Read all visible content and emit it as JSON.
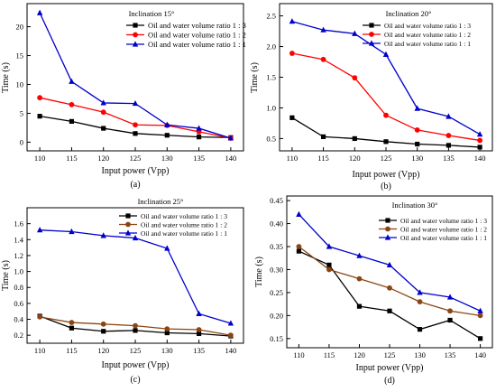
{
  "chart_data": [
    {
      "type": "line",
      "panel": "(a)",
      "legend_title": "Inclination 15°",
      "xlabel": "Input power (Vpp)",
      "ylabel": "Time (s)",
      "x": [
        110,
        115,
        120,
        125,
        130,
        135,
        140
      ],
      "xlim": [
        108,
        142
      ],
      "ylim": [
        -1.5,
        24
      ],
      "yticks": [
        0,
        5,
        10,
        15,
        20
      ],
      "legend_position": "top-right",
      "series": [
        {
          "name": "Oil and water volume ratio 1 : 3",
          "color": "#000000",
          "marker": "square",
          "values": [
            4.5,
            3.6,
            2.4,
            1.5,
            1.2,
            0.9,
            0.8
          ]
        },
        {
          "name": "Oil and water volume ratio 1 : 2",
          "color": "#ff0000",
          "marker": "circle",
          "values": [
            7.7,
            6.5,
            5.2,
            3.0,
            2.9,
            1.8,
            0.7
          ]
        },
        {
          "name": "Oil and water volume ratio 1 : 1",
          "color": "#0000cc",
          "marker": "triangle",
          "values": [
            22.4,
            10.5,
            6.8,
            6.7,
            3.0,
            2.4,
            0.7
          ]
        }
      ]
    },
    {
      "type": "line",
      "panel": "(b)",
      "legend_title": "Inclination 20°",
      "xlabel": "Input power (Vpp)",
      "ylabel": "Time (s)",
      "x": [
        110,
        115,
        120,
        125,
        130,
        135,
        140
      ],
      "xlim": [
        108,
        142
      ],
      "ylim": [
        0.3,
        2.7
      ],
      "yticks": [
        0.5,
        1.0,
        1.5,
        2.0,
        2.5
      ],
      "legend_position": "top-right",
      "series": [
        {
          "name": "Oil and water volume ratio 1 : 3",
          "color": "#000000",
          "marker": "square",
          "values": [
            0.84,
            0.53,
            0.5,
            0.45,
            0.41,
            0.39,
            0.36
          ]
        },
        {
          "name": "Oil and water volume ratio 1 : 2",
          "color": "#ff0000",
          "marker": "circle",
          "values": [
            1.89,
            1.79,
            1.49,
            0.88,
            0.64,
            0.55,
            0.47
          ]
        },
        {
          "name": "Oil and water volume ratio 1 : 1",
          "color": "#0000cc",
          "marker": "triangle",
          "values": [
            2.41,
            2.27,
            2.21,
            1.87,
            0.99,
            0.86,
            0.57
          ]
        }
      ]
    },
    {
      "type": "line",
      "panel": "(c)",
      "legend_title": "Inclination 25°",
      "xlabel": "Input power (Vpp)",
      "ylabel": "Time (s)",
      "x": [
        110,
        115,
        120,
        125,
        130,
        135,
        140
      ],
      "xlim": [
        108,
        142
      ],
      "ylim": [
        0.1,
        1.8
      ],
      "yticks": [
        0.2,
        0.4,
        0.6,
        0.8,
        1.0,
        1.2,
        1.4,
        1.6
      ],
      "legend_position": "top-right",
      "series": [
        {
          "name": "Oil and water volume ratio 1 : 3",
          "color": "#000000",
          "marker": "square",
          "values": [
            0.44,
            0.29,
            0.25,
            0.26,
            0.23,
            0.22,
            0.19
          ]
        },
        {
          "name": "Oil and water volume ratio 1 : 2",
          "color": "#8b4513",
          "marker": "circle",
          "values": [
            0.43,
            0.36,
            0.34,
            0.32,
            0.28,
            0.27,
            0.2
          ]
        },
        {
          "name": "Oil and water volume ratio 1 : 1",
          "color": "#0000cc",
          "marker": "triangle",
          "values": [
            1.52,
            1.5,
            1.45,
            1.42,
            1.29,
            0.47,
            0.35
          ]
        }
      ]
    },
    {
      "type": "line",
      "panel": "(d)",
      "legend_title": "Inclination 30°",
      "xlabel": "Input power (Vpp)",
      "ylabel": "Time (s)",
      "x": [
        110,
        115,
        120,
        125,
        130,
        135,
        140
      ],
      "xlim": [
        108,
        142
      ],
      "ylim": [
        0.13,
        0.46
      ],
      "yticks": [
        0.15,
        0.2,
        0.25,
        0.3,
        0.35,
        0.4,
        0.45
      ],
      "legend_position": "top-right",
      "series": [
        {
          "name": "Oil and water volume ratio 1 : 3",
          "color": "#000000",
          "marker": "square",
          "values": [
            0.34,
            0.31,
            0.22,
            0.21,
            0.17,
            0.19,
            0.15
          ]
        },
        {
          "name": "Oil and water volume ratio 1 : 2",
          "color": "#8b4513",
          "marker": "circle",
          "values": [
            0.35,
            0.3,
            0.28,
            0.26,
            0.23,
            0.21,
            0.2
          ]
        },
        {
          "name": "Oil and water volume ratio 1 : 1",
          "color": "#0000cc",
          "marker": "triangle",
          "values": [
            0.42,
            0.35,
            0.33,
            0.31,
            0.25,
            0.24,
            0.21
          ]
        }
      ]
    }
  ]
}
